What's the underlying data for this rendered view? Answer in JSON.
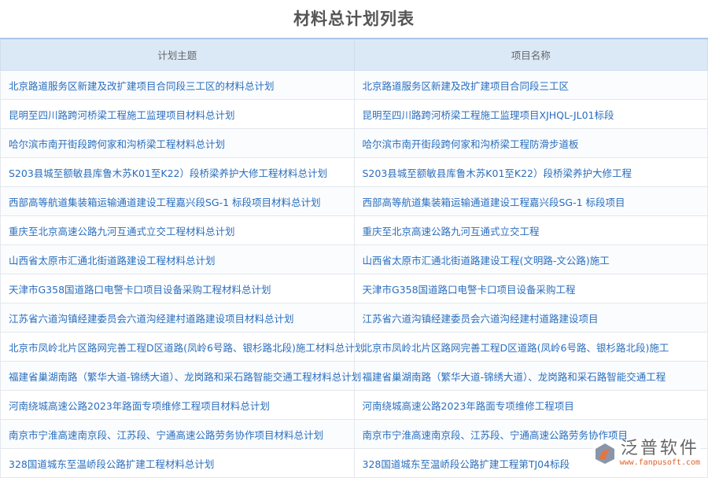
{
  "title": "材料总计划列表",
  "columns": [
    "计划主题",
    "项目名称"
  ],
  "rows": [
    [
      "北京路道服务区新建及改扩建项目合同段三工区的材料总计划",
      "北京路道服务区新建及改扩建项目合同段三工区"
    ],
    [
      "昆明至四川路跨河桥梁工程施工监理项目材料总计划",
      "昆明至四川路跨河桥梁工程施工监理项目XJHQL-JL01标段"
    ],
    [
      "哈尔滨市南开街段跨何家和沟桥梁工程材料总计划",
      "哈尔滨市南开街段跨何家和沟桥梁工程防滑步道板"
    ],
    [
      "S203县城至额敏县库鲁木苏K01至K22）段桥梁养护大修工程材料总计划",
      "S203县城至额敏县库鲁木苏K01至K22）段桥梁养护大修工程"
    ],
    [
      "西部高等航道集装箱运输通道建设工程嘉兴段SG-1 标段项目材料总计划",
      "西部高等航道集装箱运输通道建设工程嘉兴段SG-1 标段项目"
    ],
    [
      "重庆至北京高速公路九河互通式立交工程材料总计划",
      "重庆至北京高速公路九河互通式立交工程"
    ],
    [
      "山西省太原市汇通北街道路建设工程材料总计划",
      "山西省太原市汇通北街道路建设工程(文明路-文公路)施工"
    ],
    [
      "天津市G358国道路口电警卡口项目设备采购工程材料总计划",
      "天津市G358国道路口电警卡口项目设备采购工程"
    ],
    [
      "江苏省六道沟镇经建委员会六道沟经建村道路建设项目材料总计划",
      "江苏省六道沟镇经建委员会六道沟经建村道路建设项目"
    ],
    [
      "北京市凤岭北片区路网完善工程D区道路(凤岭6号路、银杉路北段)施工材料总计划",
      "北京市凤岭北片区路网完善工程D区道路(凤岭6号路、银杉路北段)施工"
    ],
    [
      "福建省巢湖南路（繁华大道-锦绣大道）、龙岗路和采石路智能交通工程材料总计划",
      "福建省巢湖南路（繁华大道-锦绣大道）、龙岗路和采石路智能交通工程"
    ],
    [
      "河南绕城高速公路2023年路面专项维修工程项目材料总计划",
      "河南绕城高速公路2023年路面专项维修工程项目"
    ],
    [
      "南京市宁淮高速南京段、江苏段、宁通高速公路劳务协作项目材料总计划",
      "南京市宁淮高速南京段、江苏段、宁通高速公路劳务协作项目"
    ],
    [
      "328国道城东至温峤段公路扩建工程材料总计划",
      "328国道城东至温峤段公路扩建工程第TJ04标段"
    ]
  ],
  "logo": {
    "name": "泛普软件",
    "url": "www.fanpusoft.com"
  }
}
